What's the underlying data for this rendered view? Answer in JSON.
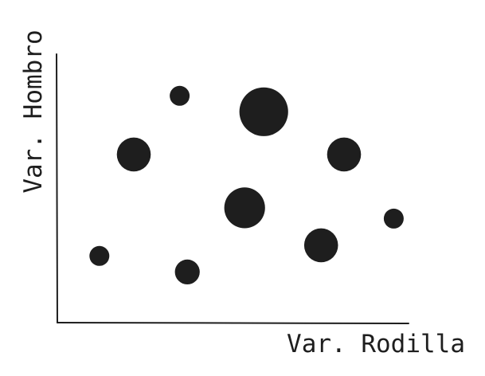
{
  "chart_data": {
    "type": "scatter",
    "xlabel": "Var. Rodilla",
    "ylabel": "Var. Hombro",
    "xlim": [
      0,
      10
    ],
    "ylim": [
      0,
      10
    ],
    "grid": false,
    "points": [
      {
        "x": 1.1,
        "y": 2.5,
        "size": 1.0
      },
      {
        "x": 2.0,
        "y": 6.3,
        "size": 1.7
      },
      {
        "x": 3.2,
        "y": 8.5,
        "size": 1.0
      },
      {
        "x": 3.4,
        "y": 1.9,
        "size": 1.25
      },
      {
        "x": 4.9,
        "y": 4.3,
        "size": 2.05
      },
      {
        "x": 5.4,
        "y": 7.9,
        "size": 2.45
      },
      {
        "x": 6.9,
        "y": 2.9,
        "size": 1.7
      },
      {
        "x": 7.5,
        "y": 6.3,
        "size": 1.7
      },
      {
        "x": 8.8,
        "y": 3.9,
        "size": 1.0
      }
    ]
  }
}
